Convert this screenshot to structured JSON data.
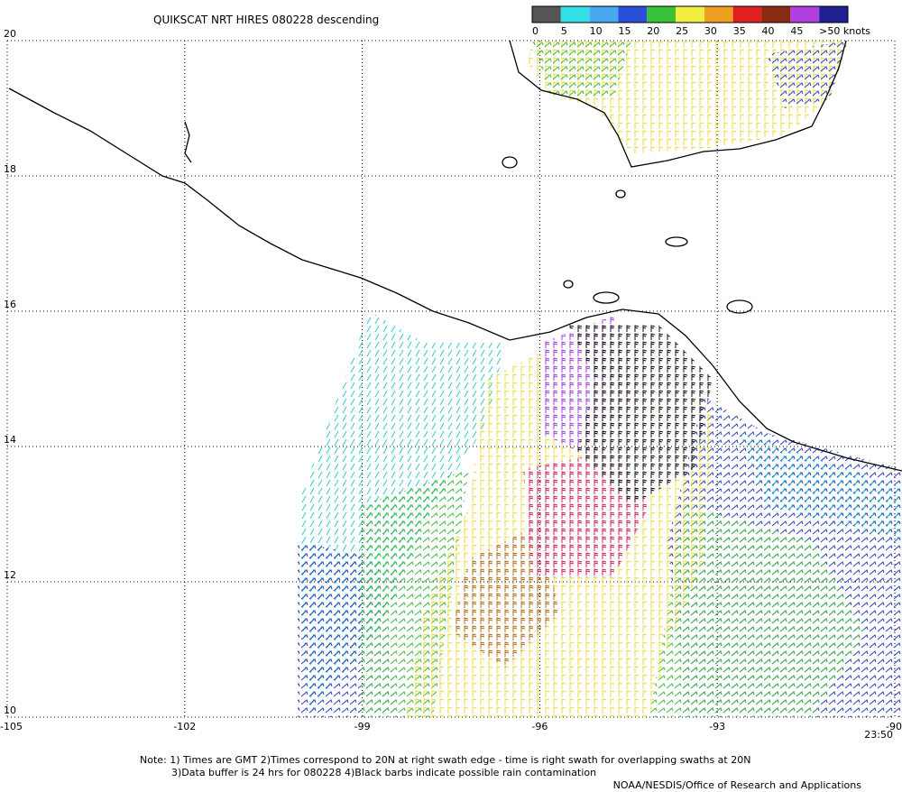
{
  "map": {
    "title": "QUIKSCAT NRT HIRES 080228 descending",
    "colorbar": {
      "labels": [
        "0",
        "5",
        "10",
        "15",
        "20",
        "25",
        "30",
        "35",
        "40",
        "45",
        ">50 knots"
      ],
      "colors": [
        "#555555",
        "#33e0e8",
        "#4aa8f0",
        "#2a4fd8",
        "#38c038",
        "#f2ee40",
        "#f0a020",
        "#e02020",
        "#8a2a10",
        "#b040e0",
        "#202090"
      ]
    },
    "lonlim": [
      -105,
      -90
    ],
    "latlim": [
      10,
      20
    ],
    "lon_ticks": [
      -105,
      -102,
      -99,
      -96,
      -93,
      -90
    ],
    "lat_ticks": [
      20,
      18,
      16,
      14,
      12,
      10
    ],
    "time": "23:50",
    "notes": [
      "Note: 1) Times are GMT 2)Times correspond to 20N at right swath edge - time is right swath for overlapping swaths at 20N",
      "3)Data buffer is 24 hrs for 080228 4)Black barbs indicate possible rain contamination",
      "NOAA/NESDIS/Office of Research and Applications"
    ]
  }
}
